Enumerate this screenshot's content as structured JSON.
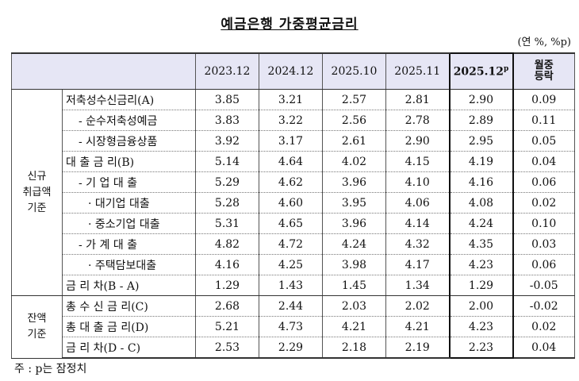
{
  "title": "예금은행 가중평균금리",
  "unit": "(연 %, %p)",
  "table": {
    "columns": [
      "2023.12",
      "2024.12",
      "2025.10",
      "2025.11",
      "2025.12"
    ],
    "latest_mark": "p",
    "change_header": [
      "월중",
      "등락"
    ],
    "groups": [
      {
        "label": [
          "신규",
          "취급액",
          "기준"
        ],
        "rows": [
          {
            "label": "저축성수신금리(A)",
            "values": [
              "3.85",
              "3.21",
              "2.57",
              "2.81",
              "2.90",
              "0.09"
            ]
          },
          {
            "label": "- 순수저축성예금",
            "values": [
              "3.83",
              "3.22",
              "2.56",
              "2.78",
              "2.89",
              "0.11"
            ]
          },
          {
            "label": "- 시장형금융상품",
            "values": [
              "3.92",
              "3.17",
              "2.61",
              "2.90",
              "2.95",
              "0.05"
            ]
          },
          {
            "label": "대 출 금 리(B)",
            "values": [
              "5.14",
              "4.64",
              "4.02",
              "4.15",
              "4.19",
              "0.04"
            ]
          },
          {
            "label": "- 기 업 대 출",
            "values": [
              "5.29",
              "4.62",
              "3.96",
              "4.10",
              "4.16",
              "0.06"
            ]
          },
          {
            "label": "· 대기업 대출",
            "values": [
              "5.28",
              "4.60",
              "3.95",
              "4.06",
              "4.08",
              "0.02"
            ]
          },
          {
            "label": "· 중소기업 대출",
            "values": [
              "5.31",
              "4.65",
              "3.96",
              "4.14",
              "4.24",
              "0.10"
            ]
          },
          {
            "label": "- 가 계 대 출",
            "values": [
              "4.82",
              "4.72",
              "4.24",
              "4.32",
              "4.35",
              "0.03"
            ]
          },
          {
            "label": "· 주택담보대출",
            "values": [
              "4.16",
              "4.25",
              "3.98",
              "4.17",
              "4.23",
              "0.06"
            ]
          },
          {
            "label": "금 리 차(B - A)",
            "values": [
              "1.29",
              "1.43",
              "1.45",
              "1.34",
              "1.29",
              "-0.05"
            ]
          }
        ]
      },
      {
        "label": [
          "잔액",
          "기준"
        ],
        "rows": [
          {
            "label": "총 수 신 금 리(C)",
            "values": [
              "2.68",
              "2.44",
              "2.03",
              "2.02",
              "2.00",
              "-0.02"
            ]
          },
          {
            "label": "총 대 출 금 리(D)",
            "values": [
              "5.21",
              "4.73",
              "4.21",
              "4.21",
              "4.23",
              "0.02"
            ]
          },
          {
            "label": "금 리 차(D - C)",
            "values": [
              "2.53",
              "2.29",
              "2.18",
              "2.19",
              "2.23",
              "0.04"
            ]
          }
        ]
      }
    ]
  },
  "note": "주 : p는 잠정치"
}
